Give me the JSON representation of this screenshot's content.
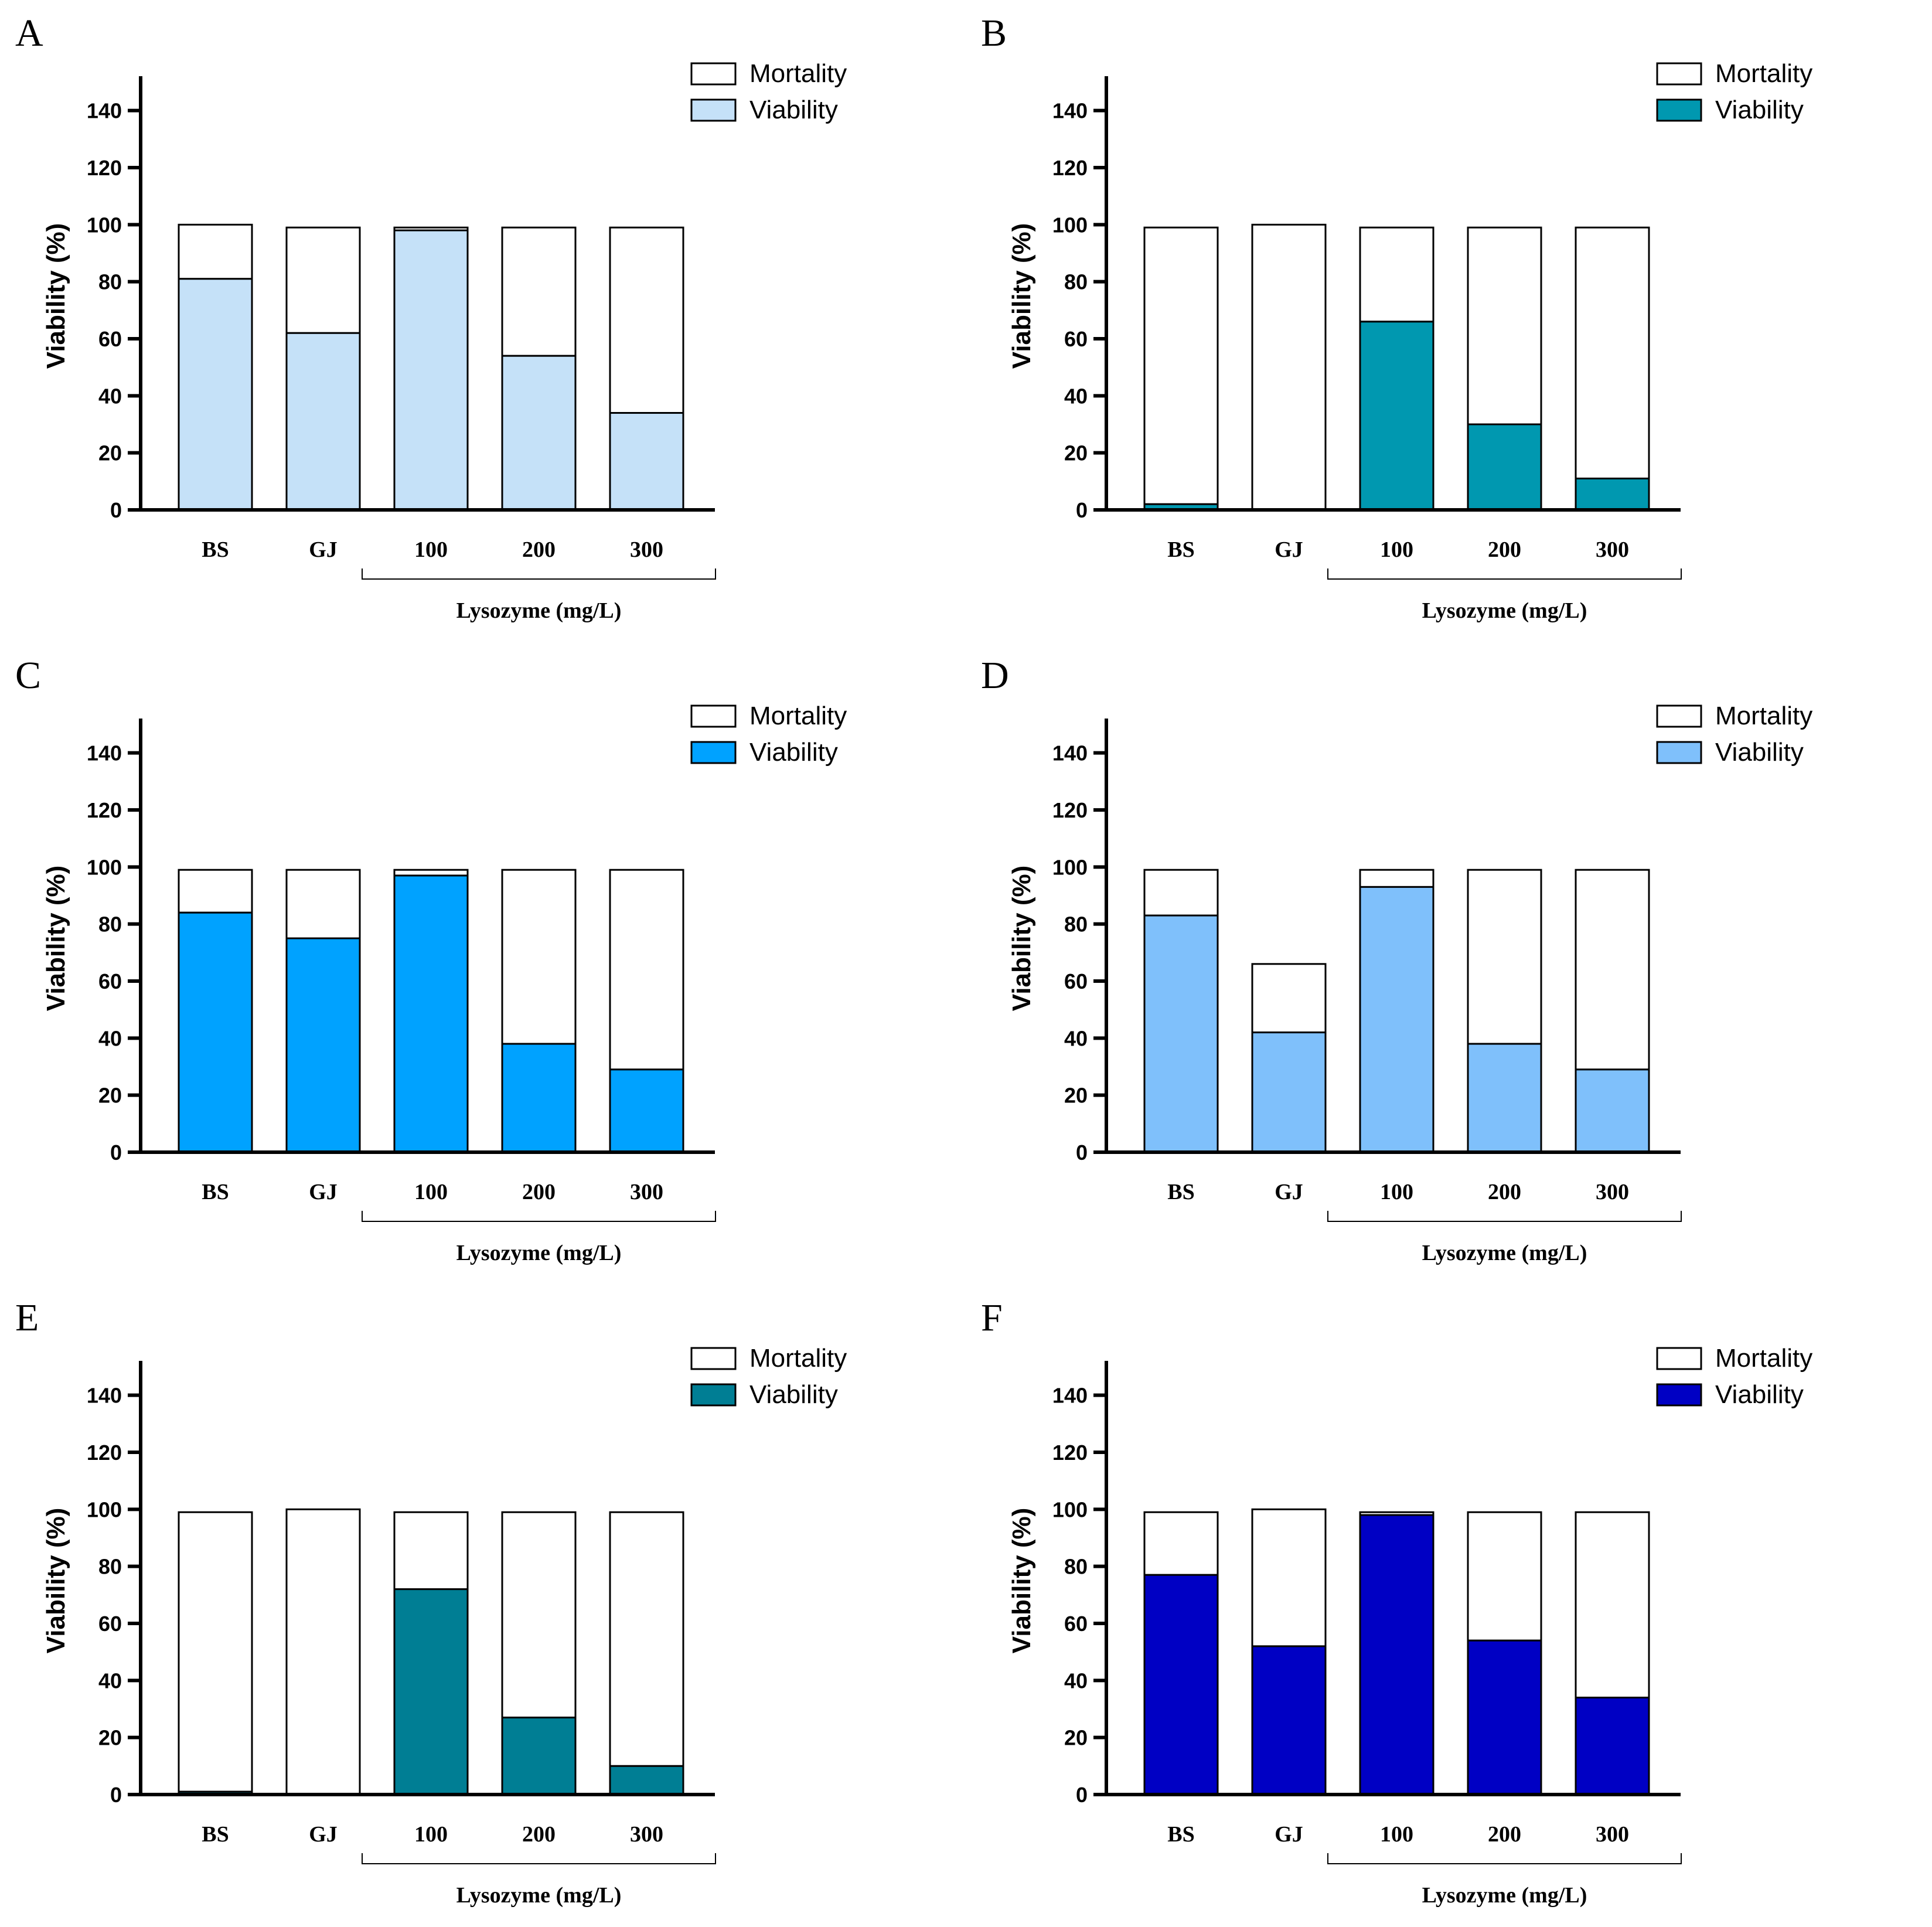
{
  "chart_data": [
    {
      "panel": "A",
      "type": "bar",
      "stacked": true,
      "categories": [
        "BS",
        "GJ",
        "100",
        "200",
        "300"
      ],
      "group_label": "Lysozyme (mg/L)",
      "ylabel": "Viability (%)",
      "ylim": [
        0,
        150
      ],
      "yticks": [
        "0",
        "20",
        "40",
        "60",
        "80",
        "100",
        "120",
        "140"
      ],
      "legend": [
        "Mortality",
        "Viability"
      ],
      "color": "#c5e1f8",
      "series": [
        {
          "name": "Viability",
          "values": [
            81,
            62,
            98,
            54,
            34
          ]
        },
        {
          "name": "Mortality",
          "values": [
            19,
            37,
            1,
            45,
            65
          ]
        }
      ]
    },
    {
      "panel": "B",
      "type": "bar",
      "stacked": true,
      "categories": [
        "BS",
        "GJ",
        "100",
        "200",
        "300"
      ],
      "group_label": "Lysozyme (mg/L)",
      "ylabel": "Viability (%)",
      "ylim": [
        0,
        150
      ],
      "yticks": [
        "0",
        "20",
        "40",
        "60",
        "80",
        "100",
        "120",
        "140"
      ],
      "legend": [
        "Mortality",
        "Viability"
      ],
      "color": "#0098b0",
      "series": [
        {
          "name": "Viability",
          "values": [
            2,
            0,
            66,
            30,
            11
          ]
        },
        {
          "name": "Mortality",
          "values": [
            97,
            100,
            33,
            69,
            88
          ]
        }
      ]
    },
    {
      "panel": "C",
      "type": "bar",
      "stacked": true,
      "categories": [
        "BS",
        "GJ",
        "100",
        "200",
        "300"
      ],
      "group_label": "Lysozyme (mg/L)",
      "ylabel": "Viability (%)",
      "ylim": [
        0,
        150
      ],
      "yticks": [
        "0",
        "20",
        "40",
        "60",
        "80",
        "100",
        "120",
        "140"
      ],
      "legend": [
        "Mortality",
        "Viability"
      ],
      "color": "#00a2ff",
      "series": [
        {
          "name": "Viability",
          "values": [
            84,
            75,
            97,
            38,
            29
          ]
        },
        {
          "name": "Mortality",
          "values": [
            15,
            24,
            2,
            61,
            70
          ]
        }
      ]
    },
    {
      "panel": "D",
      "type": "bar",
      "stacked": true,
      "categories": [
        "BS",
        "GJ",
        "100",
        "200",
        "300"
      ],
      "group_label": "Lysozyme (mg/L)",
      "ylabel": "Viability (%)",
      "ylim": [
        0,
        150
      ],
      "yticks": [
        "0",
        "20",
        "40",
        "60",
        "80",
        "100",
        "120",
        "140"
      ],
      "legend": [
        "Mortality",
        "Viability"
      ],
      "color": "#7fc0fb",
      "series": [
        {
          "name": "Viability",
          "values": [
            83,
            42,
            93,
            38,
            29
          ]
        },
        {
          "name": "Mortality",
          "values": [
            16,
            24,
            6,
            61,
            70
          ]
        }
      ]
    },
    {
      "panel": "E",
      "type": "bar",
      "stacked": true,
      "categories": [
        "BS",
        "GJ",
        "100",
        "200",
        "300"
      ],
      "group_label": "Lysozyme (mg/L)",
      "ylabel": "Viability (%)",
      "ylim": [
        0,
        150
      ],
      "yticks": [
        "0",
        "20",
        "40",
        "60",
        "80",
        "100",
        "120",
        "140"
      ],
      "legend": [
        "Mortality",
        "Viability"
      ],
      "color": "#007e94",
      "series": [
        {
          "name": "Viability",
          "values": [
            1,
            0,
            72,
            27,
            10
          ]
        },
        {
          "name": "Mortality",
          "values": [
            98,
            100,
            27,
            72,
            89
          ]
        }
      ]
    },
    {
      "panel": "F",
      "type": "bar",
      "stacked": true,
      "categories": [
        "BS",
        "GJ",
        "100",
        "200",
        "300"
      ],
      "group_label": "Lysozyme (mg/L)",
      "ylabel": "Viability (%)",
      "ylim": [
        0,
        150
      ],
      "yticks": [
        "0",
        "20",
        "40",
        "60",
        "80",
        "100",
        "120",
        "140"
      ],
      "legend": [
        "Mortality",
        "Viability"
      ],
      "color": "#0000c4",
      "series": [
        {
          "name": "Viability",
          "values": [
            77,
            52,
            98,
            54,
            34
          ]
        },
        {
          "name": "Mortality",
          "values": [
            22,
            48,
            1,
            45,
            65
          ]
        }
      ]
    }
  ]
}
